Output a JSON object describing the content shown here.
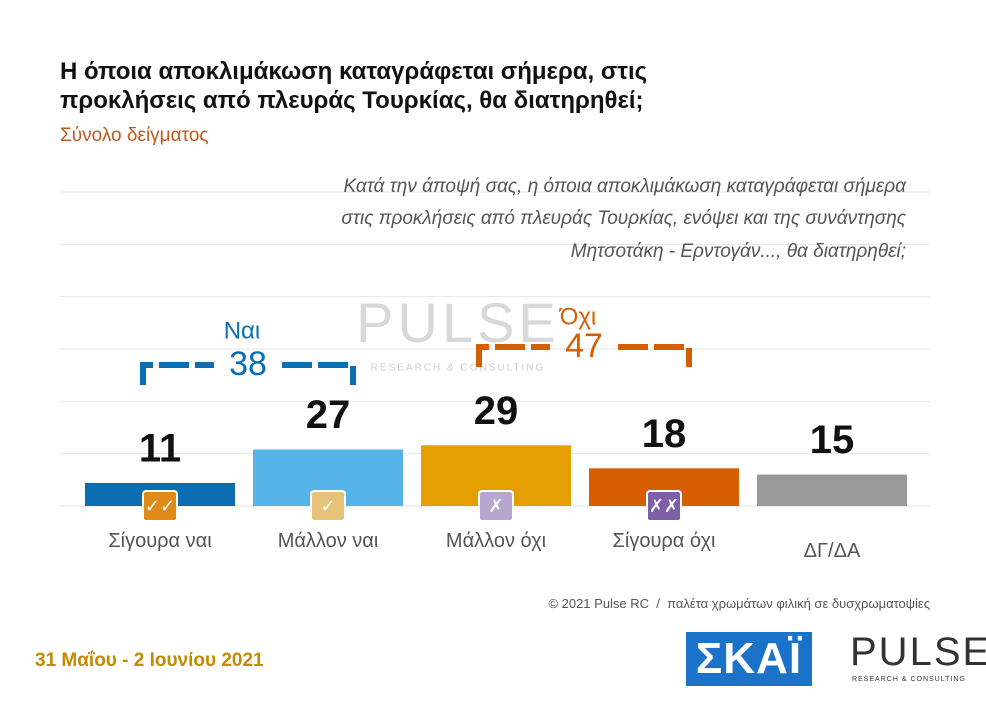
{
  "chart_data": {
    "type": "bar",
    "title": [
      "Η όποια αποκλιμάκωση καταγράφεται σήμερα, στις",
      "προκλήσεις από πλευράς Τουρκίας, θα διατηρηθεί;"
    ],
    "subtitle": "Σύνολο δείγματος",
    "note": [
      "Κατά την άποψή σας, η όποια αποκλιμάκωση καταγράφεται σήμερα",
      "στις προκλήσεις από πλευράς Τουρκίας, ενόψει και της συνάντησης",
      "Μητσοτάκη - Ερντογάν..., θα διατηρηθεί;"
    ],
    "categories": [
      "Σίγουρα ναι",
      "Μάλλον ναι",
      "Μάλλον όχι",
      "Σίγουρα όχι",
      "ΔΓ/ΔΑ"
    ],
    "values": [
      11,
      27,
      29,
      18,
      15
    ],
    "colors": [
      "#0a6eb0",
      "#56b4e9",
      "#e69f00",
      "#d55e00",
      "#999999"
    ],
    "groups": [
      {
        "name": "Ναι",
        "value": 38,
        "color": "#0a6eb0",
        "members": [
          "Σίγουρα ναι",
          "Μάλλον ναι"
        ]
      },
      {
        "name": "Όχι",
        "value": 47,
        "color": "#d55e00",
        "members": [
          "Μάλλον όχι",
          "Σίγουρα όχι"
        ]
      }
    ],
    "ylim": [
      0,
      150
    ],
    "grid": true,
    "watermark": {
      "text": "PULSE",
      "subtext": "RESEARCH & CONSULTING"
    },
    "footer": "© 2021 Pulse RC  /  παλέτα χρωμάτων φιλική σε δυσχρωματοψίες",
    "date": "31 Μαΐου - 2 Ιουνίου 2021",
    "logos": {
      "broadcaster": "ΣΚΑΪ",
      "pollster": "PULSE",
      "pollster_sub": "RESEARCH & CONSULTING"
    }
  }
}
